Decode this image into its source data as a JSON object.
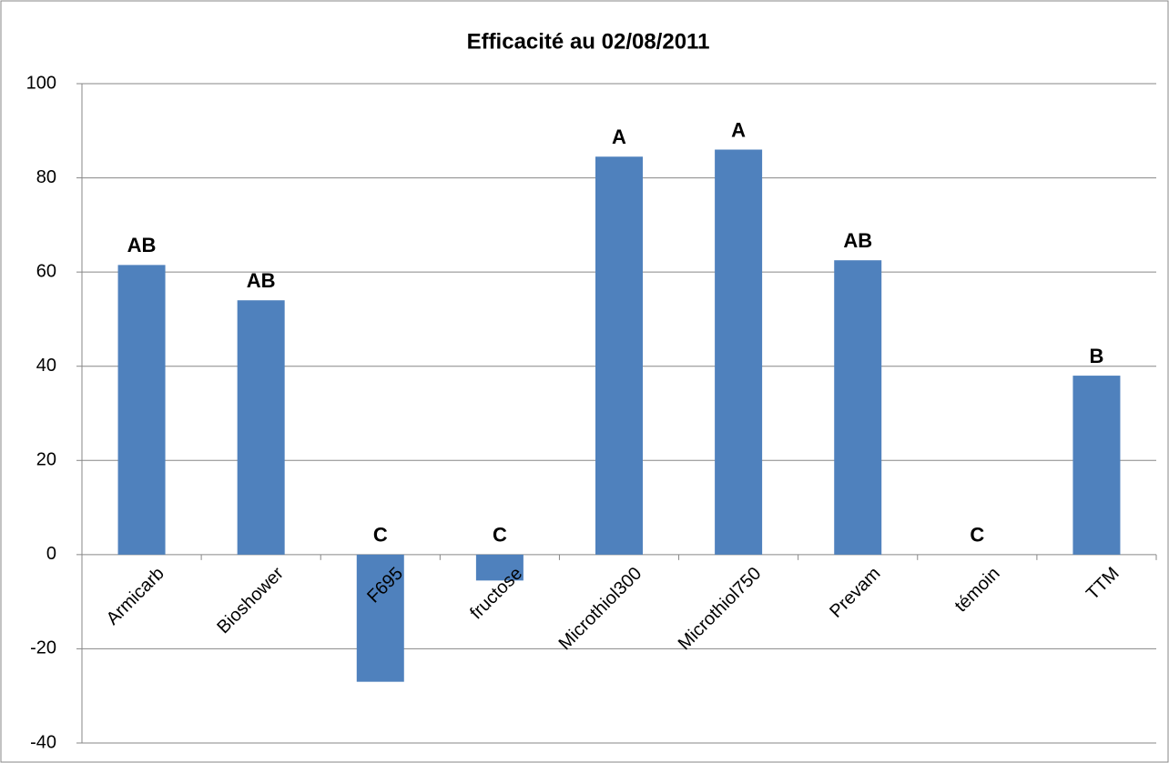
{
  "chart_data": {
    "type": "bar",
    "title": "Efficacité au 02/08/2011",
    "categories": [
      "Armicarb",
      "Bioshower",
      "F695",
      "fructose",
      "Microthiol300",
      "Microthiol750",
      "Prevam",
      "témoin",
      "TTM"
    ],
    "values": [
      61.5,
      54,
      -27,
      -5.5,
      84.5,
      86,
      62.5,
      0,
      38
    ],
    "annotations": [
      "AB",
      "AB",
      "C",
      "C",
      "A",
      "A",
      "AB",
      "C",
      "B"
    ],
    "color": "#4f81bd",
    "ylim": [
      -40,
      100
    ],
    "yticks": [
      -40,
      -20,
      0,
      20,
      40,
      60,
      80,
      100
    ],
    "grid": true
  }
}
